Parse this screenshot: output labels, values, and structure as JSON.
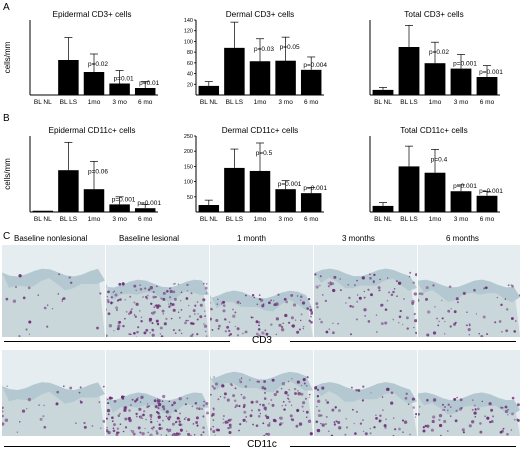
{
  "panels": {
    "a": "A",
    "b": "B",
    "c": "C"
  },
  "chart_data": [
    {
      "type": "bar",
      "title": "Epidermal CD3+ cells",
      "ylabel": "cells/mm",
      "categories": [
        "BL NL",
        "BL LS",
        "1mo",
        "3 mo",
        "6 mo"
      ],
      "values": [
        0.5,
        70,
        46,
        23,
        14
      ],
      "errors": [
        0,
        45,
        36,
        26,
        13
      ],
      "pvalues": [
        "",
        "",
        "p=0.02",
        "p=0.01",
        "p=0.01"
      ],
      "ylim": [
        0,
        150
      ],
      "yticks": []
    },
    {
      "type": "bar",
      "title": "Dermal CD3+ cells",
      "ylabel": "",
      "categories": [
        "BL NL",
        "BL LS",
        "1mo",
        "3 mo",
        "6 mo"
      ],
      "values": [
        17,
        88,
        63,
        64,
        47
      ],
      "errors": [
        8,
        48,
        42,
        44,
        24
      ],
      "pvalues": [
        "",
        "",
        "p=0.03",
        "p=0.05",
        "p=0.004"
      ],
      "ylim": [
        0,
        140
      ],
      "yticks": [
        20,
        40,
        60,
        80,
        100,
        120,
        140
      ]
    },
    {
      "type": "bar",
      "title": "Total CD3+ cells",
      "ylabel": "",
      "categories": [
        "BL NL",
        "BL LS",
        "1mo",
        "3 mo",
        "6 mo"
      ],
      "values": [
        17,
        160,
        106,
        88,
        60
      ],
      "errors": [
        8,
        72,
        70,
        47,
        38
      ],
      "pvalues": [
        "",
        "",
        "p=0.02",
        "p=0.001",
        "p=0.001"
      ],
      "ylim": [
        0,
        250
      ],
      "yticks": []
    },
    {
      "type": "bar",
      "title": "Epidermal CD11c+ cells",
      "ylabel": "cells/mm",
      "categories": [
        "BL NL",
        "BL LS",
        "1mo",
        "3 mo",
        "6 mo"
      ],
      "values": [
        1,
        33,
        18,
        6,
        3
      ],
      "errors": [
        0,
        22,
        22,
        6,
        3
      ],
      "pvalues": [
        "",
        "",
        "p=0.06",
        "p=0.001",
        "p=0.001"
      ],
      "ylim": [
        0,
        60
      ],
      "yticks": []
    },
    {
      "type": "bar",
      "title": "Dermal CD11c+ cells",
      "ylabel": "",
      "categories": [
        "BL NL",
        "BL LS",
        "1mo",
        "3 mo",
        "6 mo"
      ],
      "values": [
        23,
        145,
        135,
        75,
        62
      ],
      "errors": [
        16,
        62,
        92,
        28,
        19
      ],
      "pvalues": [
        "",
        "",
        "p=0.5",
        "p=0.001",
        "p=0.001"
      ],
      "ylim": [
        0,
        250
      ],
      "yticks": [
        50,
        100,
        150,
        200,
        250
      ]
    },
    {
      "type": "bar",
      "title": "Total CD11c+ cells",
      "ylabel": "",
      "categories": [
        "BL NL",
        "BL LS",
        "1mo",
        "3 mo",
        "6 mo"
      ],
      "values": [
        24,
        180,
        155,
        82,
        64
      ],
      "errors": [
        13,
        80,
        92,
        25,
        17
      ],
      "pvalues": [
        "",
        "",
        "p=0.4",
        "p=0.001",
        "p=0.001"
      ],
      "ylim": [
        0,
        300
      ],
      "yticks": []
    }
  ],
  "micrographs": {
    "columns": [
      "Baseline nonlesional",
      "Baseline lesional",
      "1 month",
      "3 months",
      "6 months"
    ],
    "rows": [
      "CD3",
      "CD11c"
    ],
    "colors": {
      "background": "#e6edf0",
      "epidermis": "#b3c8d1",
      "dermis": "#c9d7da",
      "stain": "#6a2a73"
    }
  }
}
